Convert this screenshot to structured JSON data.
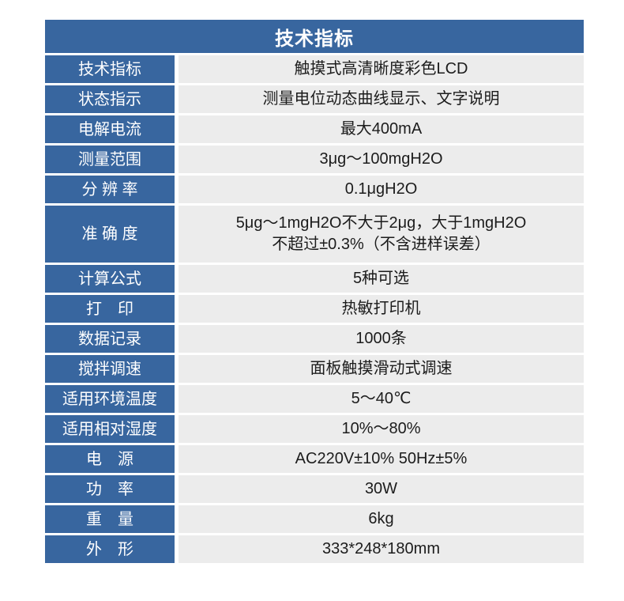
{
  "colors": {
    "header_blue": "#38669f",
    "label_blue": "#38669f",
    "value_bg": "#ececec",
    "label_text": "#ffffff",
    "value_text": "#1c1c1c",
    "page_bg": "#ffffff"
  },
  "table": {
    "title": "技术指标",
    "rows": [
      {
        "label": "技术指标",
        "value": "触摸式高清晰度彩色LCD"
      },
      {
        "label": "状态指示",
        "value": "测量电位动态曲线显示、文字说明"
      },
      {
        "label": "电解电流",
        "value": "最大400mA"
      },
      {
        "label": "测量范围",
        "value": "3μg～100mgH2O"
      },
      {
        "label": "分 辨 率",
        "value": "0.1μgH2O"
      },
      {
        "label": "准 确 度",
        "value": "5μg～1mgH2O不大于2μg，大于1mgH2O\n不超过±0.3%（不含进样误差）"
      },
      {
        "label": "计算公式",
        "value": "5种可选"
      },
      {
        "label": "打　印",
        "value": "热敏打印机"
      },
      {
        "label": "数据记录",
        "value": "1000条"
      },
      {
        "label": "搅拌调速",
        "value": "面板触摸滑动式调速"
      },
      {
        "label": "适用环境温度",
        "value": "5～40℃"
      },
      {
        "label": "适用相对湿度",
        "value": "10%～80%"
      },
      {
        "label": "电　源",
        "value": "AC220V±10% 50Hz±5%"
      },
      {
        "label": "功　率",
        "value": "30W"
      },
      {
        "label": "重　量",
        "value": "6kg"
      },
      {
        "label": "外　形",
        "value": "333*248*180mm"
      }
    ]
  }
}
